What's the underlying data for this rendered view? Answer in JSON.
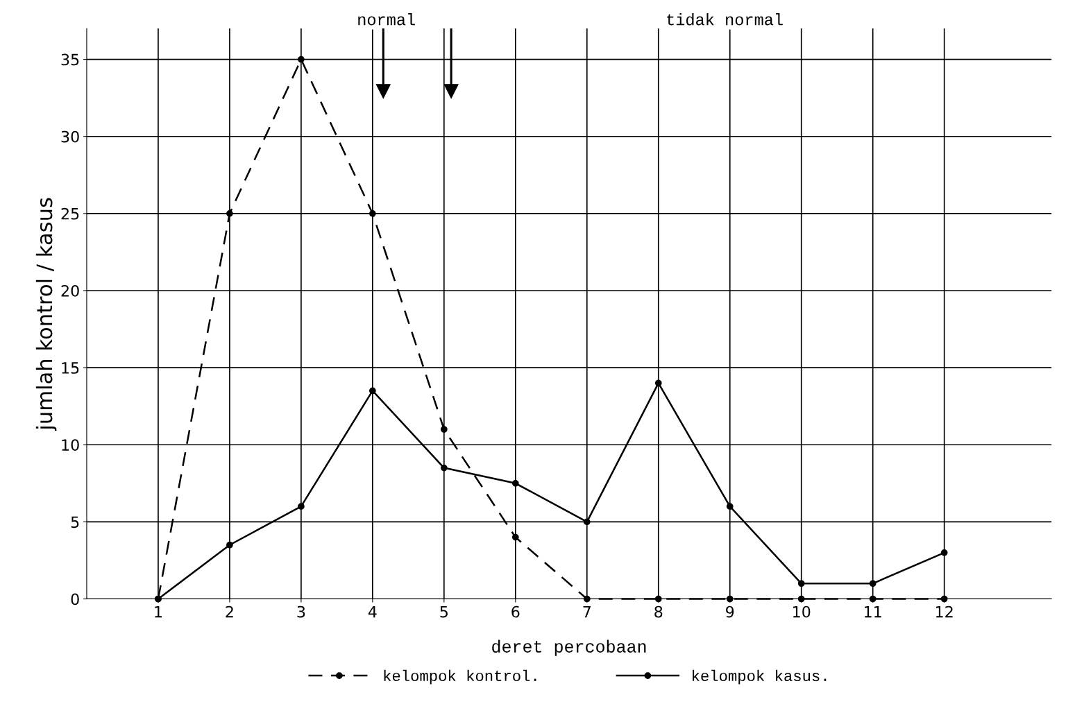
{
  "chart_data": {
    "type": "line",
    "xlabel": "deret percobaan",
    "ylabel": "jumlah kontrol / kasus",
    "x": [
      1,
      2,
      3,
      4,
      5,
      6,
      7,
      8,
      9,
      10,
      11,
      12
    ],
    "series": [
      {
        "name": "kelompok kontrol.",
        "color": "#000000",
        "line_style": "dashed",
        "values": [
          0,
          25,
          35,
          25,
          11,
          4,
          0,
          0,
          0,
          0,
          0,
          0
        ]
      },
      {
        "name": "kelompok kasus.",
        "color": "#000000",
        "line_style": "solid",
        "values": [
          0,
          3.5,
          6,
          13.5,
          8.5,
          7.5,
          5,
          14,
          6,
          1,
          1,
          3
        ]
      }
    ],
    "xlim": [
      0,
      13.5
    ],
    "ylim": [
      0,
      37
    ],
    "xticks": [
      1,
      2,
      3,
      4,
      5,
      6,
      7,
      8,
      9,
      10,
      11,
      12
    ],
    "yticks": [
      0,
      5,
      10,
      15,
      20,
      25,
      30,
      35
    ],
    "grid": true,
    "marker": "circle",
    "legend": "bottom",
    "annotations": [
      "normal",
      "tidak normal"
    ],
    "ref_lines": [
      {
        "axis": "x",
        "value": 4.15
      },
      {
        "axis": "x",
        "value": 5.1
      }
    ]
  }
}
